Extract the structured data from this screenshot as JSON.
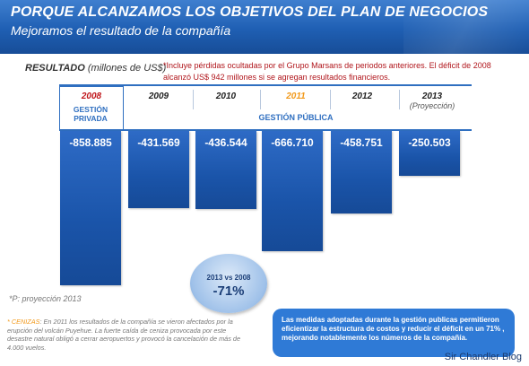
{
  "header": {
    "title": "PORQUE ALCANZAMOS LOS OBJETIVOS DEL PLAN DE NEGOCIOS",
    "subtitle": "Mejoramos el resultado de la compañía"
  },
  "unit_label": {
    "bold": "RESULTADO",
    "rest": " (millones de US$)"
  },
  "note": "*Incluye pérdidas ocultadas por el Grupo Marsans de periodos anteriores. El déficit de 2008 alcanzó US$ 942 millones si se agregan resultados financieros.",
  "group_labels": {
    "private": "GESTIÓN PRIVADA",
    "public": "GESTIÓN PÚBLICA"
  },
  "projection_sub": "(Proyección)",
  "chart_data": {
    "type": "bar",
    "categories": [
      "2008",
      "2009",
      "2010",
      "2011",
      "2012",
      "2013"
    ],
    "values": [
      -858.885,
      -431.569,
      -436.544,
      -666.71,
      -458.751,
      -250.503
    ],
    "value_labels": [
      "-858.885",
      "-431.569",
      "-436.544",
      "-666.710",
      "-458.751",
      "-250.503"
    ],
    "year_colors": [
      "#c0161b",
      "#222222",
      "#222222",
      "#f29a1d",
      "#222222",
      "#222222"
    ],
    "bar_color": "#1f5bb3",
    "title": "",
    "xlabel": "",
    "ylabel": "",
    "ylim": [
      -900,
      0
    ]
  },
  "bubble": {
    "text": "2013 vs 2008",
    "value": "-71%"
  },
  "projection_note": "*P: proyección 2013",
  "ash_note": {
    "label": "* CENIZAS",
    "text": ": En 2011 los resultados de la compañía se vieron afectados por la erupción del volcán Puyehue. La fuerte caída de ceniza provocada por este desastre natural obligó a cerrar aeropuertos y provocó la cancelación de más de 4.000 vuelos."
  },
  "conclusion": "Las medidas adoptadas durante la gestión publicas permitieron eficientizar la estructura de costos y reducir el déficit en un 71% , mejorando notablemente los números de la compañía.",
  "watermark": "Sir Chandler Blog"
}
